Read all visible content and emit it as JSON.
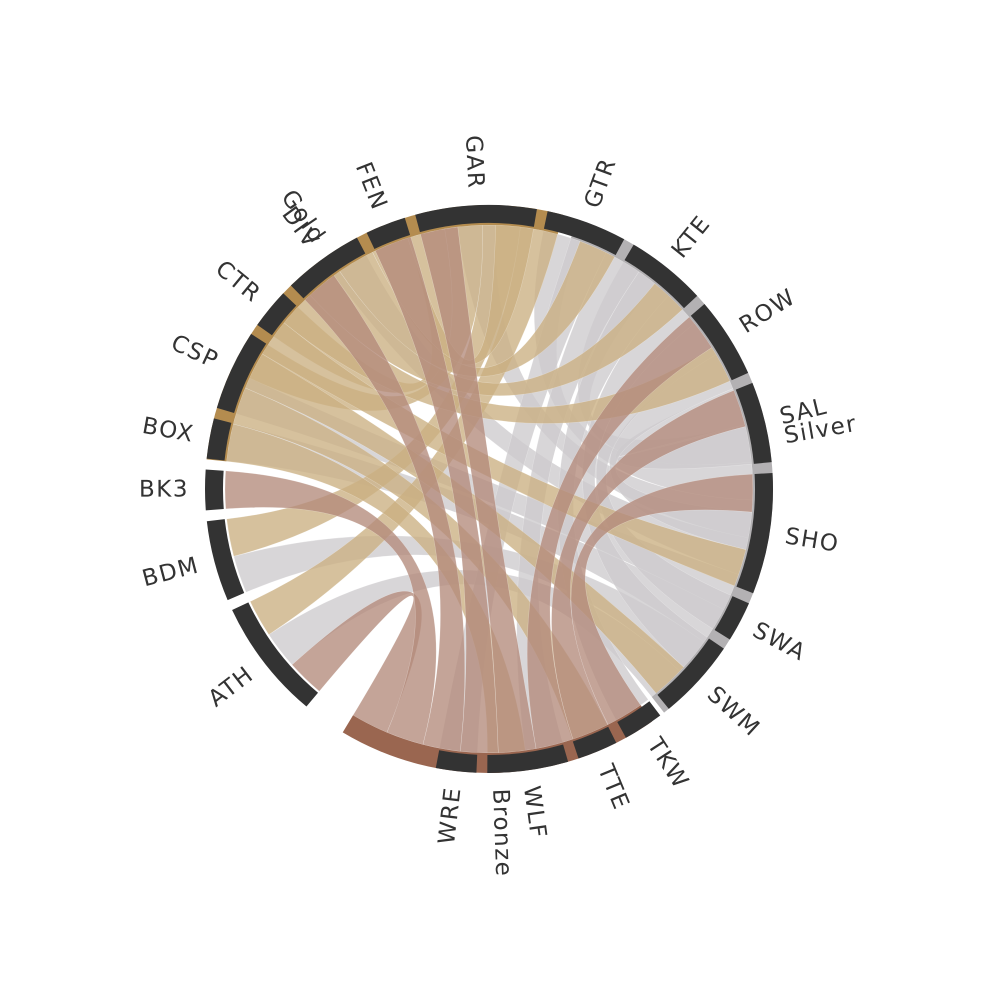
{
  "chart_data": {
    "type": "chord",
    "colors": {
      "Gold": "#b48c4f",
      "Silver": "#b3b1b3",
      "Bronze": "#9a6650",
      "sport": "#333333",
      "ribbon_gold": "#cbb082",
      "ribbon_silver": "#cdcbcd",
      "ribbon_bronze": "#b48b7b"
    },
    "medals": [
      {
        "name": "Gold",
        "label": "Gold",
        "color": "#b48c4f"
      },
      {
        "name": "Silver",
        "label": "Silver",
        "color": "#b3b1b3"
      },
      {
        "name": "Bronze",
        "label": "Bronze",
        "color": "#9a6650"
      }
    ],
    "sports": [
      {
        "code": "ATH",
        "gold": 1,
        "silver": 1,
        "bronze": 1
      },
      {
        "code": "BDM",
        "gold": 1,
        "silver": 1,
        "bronze": 0
      },
      {
        "code": "BK3",
        "gold": 0,
        "silver": 0,
        "bronze": 1
      },
      {
        "code": "BOX",
        "gold": 0,
        "silver": 1,
        "bronze": 0
      },
      {
        "code": "CSP",
        "gold": 1,
        "silver": 1,
        "bronze": 0
      },
      {
        "code": "CTR",
        "gold": 1,
        "silver": 0,
        "bronze": 0
      },
      {
        "code": "DIV",
        "gold": 0,
        "silver": 1,
        "bronze": 1
      },
      {
        "code": "FEN",
        "gold": 0,
        "silver": 0,
        "bronze": 1
      },
      {
        "code": "GAR",
        "gold": 1,
        "silver": 1,
        "bronze": 1
      },
      {
        "code": "GTR",
        "gold": 1,
        "silver": 1,
        "bronze": 0
      },
      {
        "code": "KTE",
        "gold": 1,
        "silver": 1,
        "bronze": 0
      },
      {
        "code": "ROW",
        "gold": 1,
        "silver": 0,
        "bronze": 1
      },
      {
        "code": "SAL",
        "gold": 0,
        "silver": 1,
        "bronze": 1
      },
      {
        "code": "SHO",
        "gold": 1,
        "silver": 1,
        "bronze": 1
      },
      {
        "code": "SWA",
        "gold": 0,
        "silver": 1,
        "bronze": 0
      },
      {
        "code": "SWM",
        "gold": 1,
        "silver": 1,
        "bronze": 0
      },
      {
        "code": "TKW",
        "gold": 0,
        "silver": 1,
        "bronze": 0
      },
      {
        "code": "TTE",
        "gold": 1,
        "silver": 0,
        "bronze": 0
      },
      {
        "code": "WLF",
        "gold": 1,
        "silver": 1,
        "bronze": 0
      },
      {
        "code": "WRE",
        "gold": 0,
        "silver": 1,
        "bronze": 0
      }
    ]
  }
}
